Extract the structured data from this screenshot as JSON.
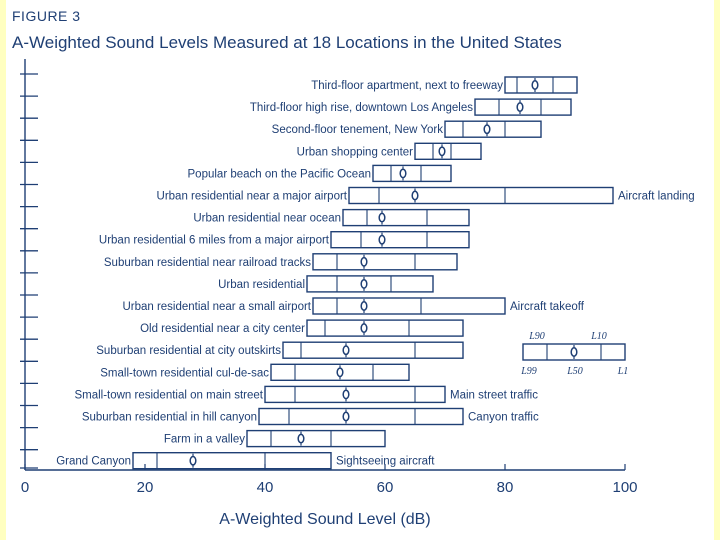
{
  "figure": {
    "label": "FIGURE 3",
    "title": "A-Weighted Sound Levels Measured at 18 Locations in the United States"
  },
  "colors": {
    "ink": "#1f3f74",
    "page": "#ffffff",
    "margin": "#ffffc0"
  },
  "chart_data": {
    "type": "box",
    "title": "A-Weighted Sound Levels Measured at 18 Locations in the United States",
    "xlabel": "A-Weighted Sound Level (dB)",
    "ylabel": "",
    "xlim": [
      0,
      100
    ],
    "xticks": [
      0,
      20,
      40,
      60,
      80,
      100
    ],
    "grid": false,
    "legend": {
      "placement": "right",
      "box": {
        "l99": 83,
        "l90": 87,
        "l50": 91.5,
        "l10": 96,
        "l1": 100
      },
      "labels": {
        "l90": "L90",
        "l10": "L10",
        "l99": "L99",
        "l50": "L50",
        "l1": "L1"
      }
    },
    "series": [
      {
        "name": "Third-floor apartment, next to freeway",
        "l99": 80,
        "l90": 82,
        "l50": 85,
        "l10": 88,
        "l1": 92
      },
      {
        "name": "Third-floor high rise, downtown Los Angeles",
        "l99": 75,
        "l90": 79,
        "l50": 82.5,
        "l10": 86,
        "l1": 91
      },
      {
        "name": "Second-floor tenement, New York",
        "l99": 70,
        "l90": 73,
        "l50": 77,
        "l10": 80,
        "l1": 86
      },
      {
        "name": "Urban shopping center",
        "l99": 65,
        "l90": 68,
        "l50": 69.5,
        "l10": 71,
        "l1": 76
      },
      {
        "name": "Popular beach on the Pacific Ocean",
        "l99": 58,
        "l90": 61,
        "l50": 63,
        "l10": 66,
        "l1": 71
      },
      {
        "name": "Urban residential near a major airport",
        "l99": 54,
        "l90": 59,
        "l50": 65,
        "l10": 80,
        "l1": 98,
        "annotation": "Aircraft landing"
      },
      {
        "name": "Urban residential near ocean",
        "l99": 53,
        "l90": 57,
        "l50": 59.5,
        "l10": 67,
        "l1": 74
      },
      {
        "name": "Urban residential 6 miles from a major airport",
        "l99": 51,
        "l90": 56,
        "l50": 59.5,
        "l10": 67,
        "l1": 74
      },
      {
        "name": "Suburban residential near railroad tracks",
        "l99": 48,
        "l90": 52,
        "l50": 56.5,
        "l10": 65,
        "l1": 72
      },
      {
        "name": "Urban residential",
        "l99": 47,
        "l90": 52,
        "l50": 56.5,
        "l10": 61,
        "l1": 68
      },
      {
        "name": "Urban residential near a small airport",
        "l99": 48,
        "l90": 52,
        "l50": 56.5,
        "l10": 66,
        "l1": 80,
        "annotation": "Aircraft takeoff"
      },
      {
        "name": "Old residential near a city center",
        "l99": 47,
        "l90": 50,
        "l50": 56.5,
        "l10": 64,
        "l1": 73
      },
      {
        "name": "Suburban residential at city outskirts",
        "l99": 43,
        "l90": 46,
        "l50": 53.5,
        "l10": 65,
        "l1": 73
      },
      {
        "name": "Small-town residential cul-de-sac",
        "l99": 41,
        "l90": 45,
        "l50": 52.5,
        "l10": 58,
        "l1": 64
      },
      {
        "name": "Small-town residential on main street",
        "l99": 40,
        "l90": 45,
        "l50": 53.5,
        "l10": 65,
        "l1": 70,
        "annotation": "Main street traffic"
      },
      {
        "name": "Suburban residential in hill canyon",
        "l99": 39,
        "l90": 44,
        "l50": 53.5,
        "l10": 65,
        "l1": 73,
        "annotation": "Canyon traffic"
      },
      {
        "name": "Farm in a valley",
        "l99": 37,
        "l90": 41,
        "l50": 46,
        "l10": 51,
        "l1": 60
      },
      {
        "name": "Grand Canyon",
        "l99": 18,
        "l90": 22,
        "l50": 28,
        "l10": 40,
        "l1": 51,
        "annotation": "Sightseeing aircraft"
      }
    ]
  }
}
